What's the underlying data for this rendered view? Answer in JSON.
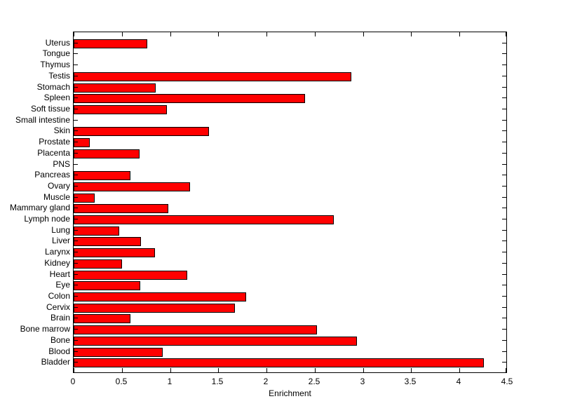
{
  "figure": {
    "background": "#FFFFFF",
    "text_color": "#000000"
  },
  "chart_data": {
    "type": "bar",
    "orientation": "horizontal",
    "title": "",
    "xlabel": "Enrichment",
    "ylabel": "",
    "xlim": [
      0,
      4.5
    ],
    "xticks": [
      0,
      0.5,
      1,
      1.5,
      2,
      2.5,
      3,
      3.5,
      4,
      4.5
    ],
    "xtick_labels": [
      "0",
      "0.5",
      "1",
      "1.5",
      "2",
      "2.5",
      "3",
      "3.5",
      "4",
      "4.5"
    ],
    "grid": false,
    "legend": null,
    "bar_color": "#FF0000",
    "bar_edge_color": "#000000",
    "categories": [
      "Uterus",
      "Tongue",
      "Thymus",
      "Testis",
      "Stomach",
      "Spleen",
      "Soft tissue",
      "Small intestine",
      "Skin",
      "Prostate",
      "Placenta",
      "PNS",
      "Pancreas",
      "Ovary",
      "Muscle",
      "Mammary gland",
      "Lymph node",
      "Lung",
      "Liver",
      "Larynx",
      "Kidney",
      "Heart",
      "Eye",
      "Colon",
      "Cervix",
      "Brain",
      "Bone marrow",
      "Bone",
      "Blood",
      "Bladder"
    ],
    "values": [
      0.76,
      0,
      0,
      2.88,
      0.85,
      2.4,
      0.97,
      0,
      1.4,
      0.17,
      0.68,
      0,
      0.59,
      1.21,
      0.22,
      0.98,
      2.7,
      0.47,
      0.7,
      0.84,
      0.5,
      1.18,
      0.69,
      1.79,
      1.67,
      0.59,
      2.52,
      2.94,
      0.92,
      4.25
    ]
  }
}
